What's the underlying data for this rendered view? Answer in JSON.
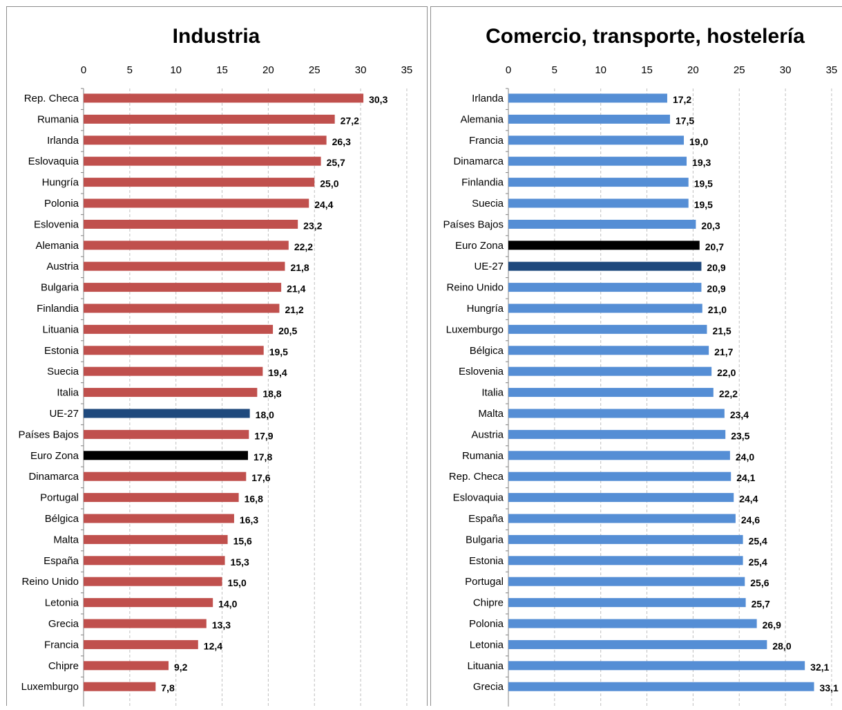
{
  "colors": {
    "industry_bar": "#C0504D",
    "commerce_bar": "#558ED5",
    "ue27_bar": "#1F497D",
    "eurozone_bar": "#000000",
    "gridline": "#BFBFBF",
    "text": "#000000"
  },
  "chart_data": [
    {
      "type": "bar",
      "orientation": "horizontal",
      "title": "Industria",
      "xlim": [
        0,
        35
      ],
      "ticks": [
        "0",
        "5",
        "10",
        "15",
        "20",
        "25",
        "30",
        "35"
      ],
      "tick_values": [
        0,
        5,
        10,
        15,
        20,
        25,
        30,
        35
      ],
      "grid": "vertical-dashed",
      "categories": [
        "Rep. Checa",
        "Rumania",
        "Irlanda",
        "Eslovaquia",
        "Hungría",
        "Polonia",
        "Eslovenia",
        "Alemania",
        "Austria",
        "Bulgaria",
        "Finlandia",
        "Lituania",
        "Estonia",
        "Suecia",
        "Italia",
        "UE-27",
        "Países Bajos",
        "Euro Zona",
        "Dinamarca",
        "Portugal",
        "Bélgica",
        "Malta",
        "España",
        "Reino Unido",
        "Letonia",
        "Grecia",
        "Francia",
        "Chipre",
        "Luxemburgo"
      ],
      "values": [
        30.3,
        27.2,
        26.3,
        25.7,
        25.0,
        24.4,
        23.2,
        22.2,
        21.8,
        21.4,
        21.2,
        20.5,
        19.5,
        19.4,
        18.8,
        18.0,
        17.9,
        17.8,
        17.6,
        16.8,
        16.3,
        15.6,
        15.3,
        15.0,
        14.0,
        13.3,
        12.4,
        9.2,
        7.8
      ],
      "labels": [
        "30,3",
        "27,2",
        "26,3",
        "25,7",
        "25,0",
        "24,4",
        "23,2",
        "22,2",
        "21,8",
        "21,4",
        "21,2",
        "20,5",
        "19,5",
        "19,4",
        "18,8",
        "18,0",
        "17,9",
        "17,8",
        "17,6",
        "16,8",
        "16,3",
        "15,6",
        "15,3",
        "15,0",
        "14,0",
        "13,3",
        "12,4",
        "9,2",
        "7,8"
      ]
    },
    {
      "type": "bar",
      "orientation": "horizontal",
      "title": "Comercio, transporte, hostelería",
      "xlim": [
        0,
        35
      ],
      "ticks": [
        "0",
        "5",
        "10",
        "15",
        "20",
        "25",
        "30",
        "35"
      ],
      "tick_values": [
        0,
        5,
        10,
        15,
        20,
        25,
        30,
        35
      ],
      "grid": "vertical-dashed",
      "categories": [
        "Irlanda",
        "Alemania",
        "Francia",
        "Dinamarca",
        "Finlandia",
        "Suecia",
        "Países Bajos",
        "Euro Zona",
        "UE-27",
        "Reino Unido",
        "Hungría",
        "Luxemburgo",
        "Bélgica",
        "Eslovenia",
        "Italia",
        "Malta",
        "Austria",
        "Rumania",
        "Rep. Checa",
        "Eslovaquia",
        "España",
        "Bulgaria",
        "Estonia",
        "Portugal",
        "Chipre",
        "Polonia",
        "Letonia",
        "Lituania",
        "Grecia"
      ],
      "values": [
        17.2,
        17.5,
        19.0,
        19.3,
        19.5,
        19.5,
        20.3,
        20.7,
        20.9,
        20.9,
        21.0,
        21.5,
        21.7,
        22.0,
        22.2,
        23.4,
        23.5,
        24.0,
        24.1,
        24.4,
        24.6,
        25.4,
        25.4,
        25.6,
        25.7,
        26.9,
        28.0,
        32.1,
        33.1
      ],
      "labels": [
        "17,2",
        "17,5",
        "19,0",
        "19,3",
        "19,5",
        "19,5",
        "20,3",
        "20,7",
        "20,9",
        "20,9",
        "21,0",
        "21,5",
        "21,7",
        "22,0",
        "22,2",
        "23,4",
        "23,5",
        "24,0",
        "24,1",
        "24,4",
        "24,6",
        "25,4",
        "25,4",
        "25,6",
        "25,7",
        "26,9",
        "28,0",
        "32,1",
        "33,1"
      ]
    }
  ]
}
